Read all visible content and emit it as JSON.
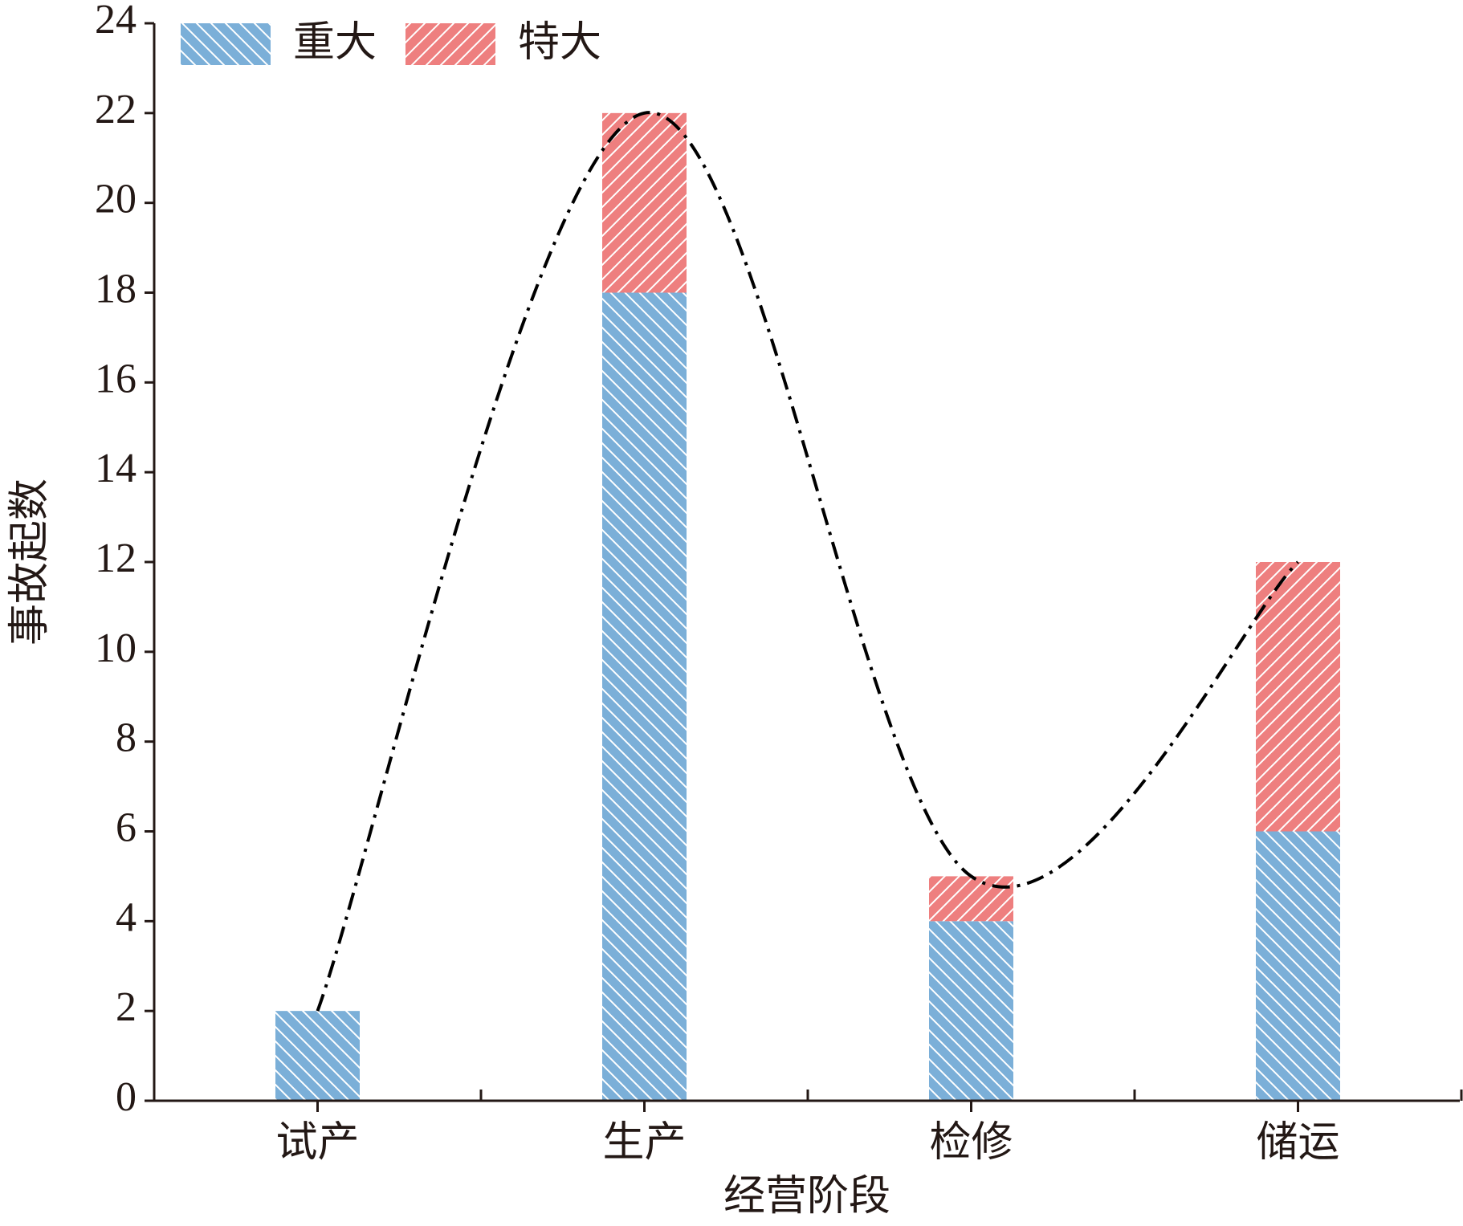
{
  "chart_data": {
    "type": "bar",
    "stacked": true,
    "x_label": "经营阶段",
    "y_label": "事故起数",
    "categories": [
      "试产",
      "生产",
      "检修",
      "储运"
    ],
    "series": [
      {
        "name": "重大",
        "color": "#7bafd8",
        "hatch": "backslash",
        "values": [
          2,
          18,
          4,
          6
        ]
      },
      {
        "name": "特大",
        "color": "#ee7f7f",
        "hatch": "slash",
        "values": [
          0,
          4,
          1,
          6
        ]
      }
    ],
    "trend": {
      "values": [
        2,
        22,
        5,
        12
      ],
      "color": "#000000",
      "style": "dash-dot"
    },
    "ylim": [
      0,
      24
    ],
    "yticks": [
      0,
      2,
      4,
      6,
      8,
      10,
      12,
      14,
      16,
      18,
      20,
      22,
      24
    ],
    "legend": "top-left"
  }
}
